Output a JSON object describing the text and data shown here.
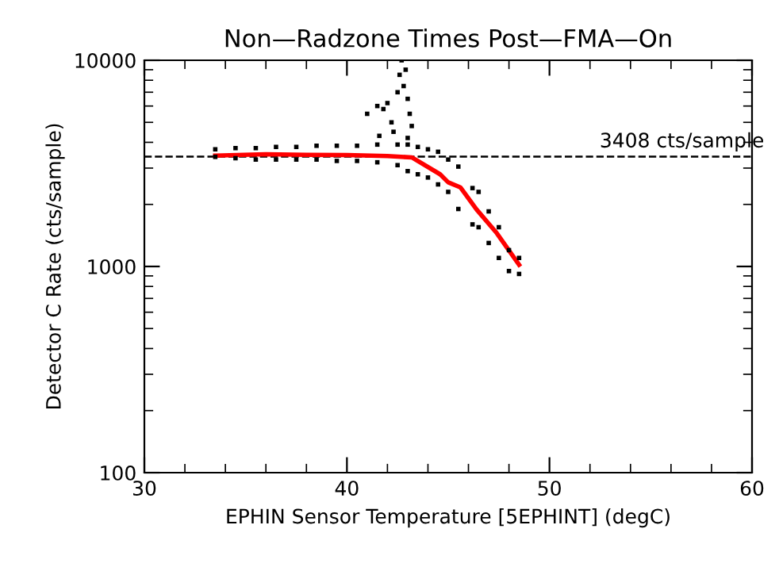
{
  "chart_data": {
    "type": "scatter",
    "title": "Non—Radzone Times Post—FMA—On",
    "xlabel": "EPHIN Sensor Temperature [5EPHINT] (degC)",
    "ylabel": "Detector C Rate (cts/sample)",
    "xlim": [
      30,
      60
    ],
    "xticks": [
      30,
      40,
      50,
      60
    ],
    "ylim": [
      100,
      10000
    ],
    "yticks": [
      100,
      1000,
      10000
    ],
    "log": true,
    "grid": false,
    "series": [
      {
        "color": "#000000",
        "marker": "square",
        "x": [
          33.5,
          33.5,
          34.5,
          34.5,
          35.5,
          35.5,
          36.5,
          36.5,
          37.5,
          37.5,
          38.5,
          38.5,
          39.5,
          39.5,
          40.5,
          40.5,
          41.5,
          41.5,
          42.5,
          42.5,
          43.0,
          43.0,
          43.5,
          43.5,
          44.0,
          44.0,
          44.5,
          44.5,
          45.0,
          45.0,
          45.5,
          45.5,
          46.2,
          46.2,
          46.5,
          46.5,
          47.0,
          47.0,
          47.5,
          47.5,
          48.0,
          48.0,
          48.5,
          48.5,
          41.0,
          41.5,
          41.8,
          42.0,
          42.2,
          42.3,
          42.5,
          42.6,
          42.7,
          42.8,
          42.9,
          43.0,
          43.1,
          43.2,
          41.6,
          43.0
        ],
        "values": [
          3400,
          3700,
          3350,
          3750,
          3300,
          3750,
          3300,
          3800,
          3300,
          3800,
          3300,
          3850,
          3250,
          3850,
          3250,
          3850,
          3200,
          3900,
          3100,
          3900,
          2900,
          3900,
          2800,
          3800,
          2700,
          3700,
          2500,
          3600,
          2300,
          3300,
          1900,
          3050,
          1600,
          2400,
          1550,
          2300,
          1300,
          1850,
          1100,
          1550,
          950,
          1200,
          920,
          1100,
          5500,
          6000,
          5800,
          6200,
          5000,
          4500,
          7000,
          8500,
          10000,
          7500,
          9000,
          6500,
          5500,
          4800,
          4300,
          4200
        ]
      },
      {
        "type": "line",
        "color": "#ff0000",
        "marker": "none",
        "x": [
          33.5,
          36,
          38,
          40,
          42,
          43.2,
          44.6,
          45.0,
          45.6,
          46.4,
          47.4,
          48.5
        ],
        "values": [
          3450,
          3500,
          3480,
          3470,
          3430,
          3380,
          2800,
          2560,
          2420,
          1890,
          1450,
          1020
        ]
      }
    ],
    "ref_lines": [
      {
        "axis": "y",
        "value": 3408,
        "label": "3408 cts/sample",
        "color": "#000000",
        "line_style": "dashed"
      }
    ]
  }
}
